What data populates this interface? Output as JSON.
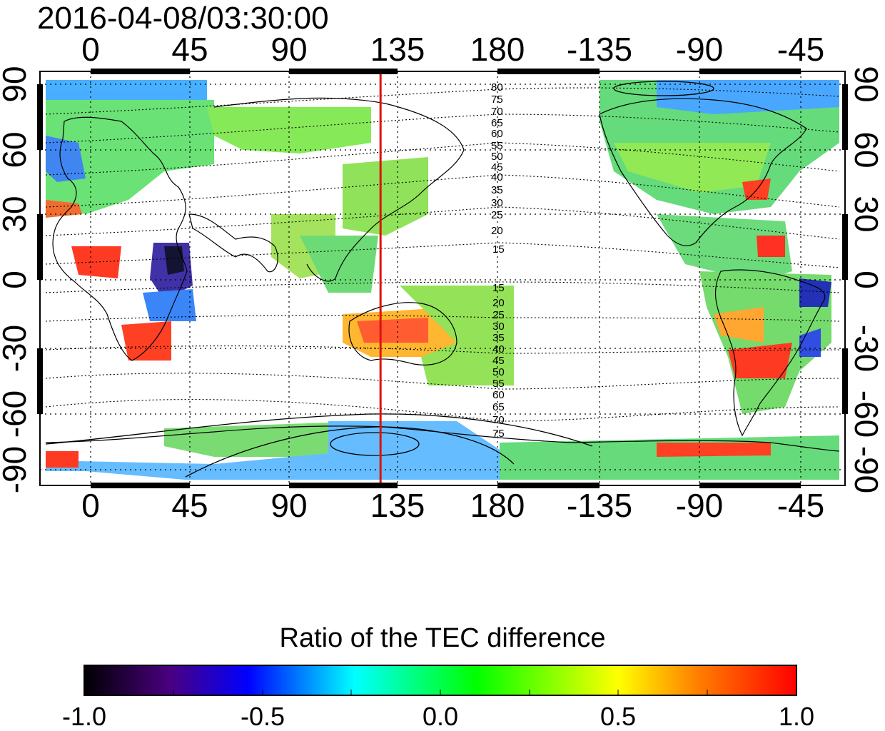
{
  "title": "2016-04-08/03:30:00",
  "map": {
    "lon_ticks": [
      "0",
      "45",
      "90",
      "135",
      "180",
      "-135",
      "-90",
      "-45"
    ],
    "lat_ticks": [
      "90",
      "60",
      "30",
      "0",
      "-30",
      "-60",
      "-90"
    ],
    "marker_longitude": 128,
    "marker_color": "#e0100c",
    "contour_labels_north": [
      "80",
      "75",
      "70",
      "65",
      "60",
      "55",
      "50",
      "45",
      "40",
      "35",
      "30",
      "25",
      "20",
      "15"
    ],
    "contour_labels_south": [
      "15",
      "20",
      "25",
      "30",
      "35",
      "40",
      "45",
      "50",
      "55",
      "60",
      "65",
      "70",
      "75"
    ]
  },
  "colorbar": {
    "title": "Ratio of the TEC difference",
    "ticks": [
      "-1.0",
      "-0.5",
      "0.0",
      "0.5",
      "1.0"
    ],
    "range": [
      -1.0,
      1.0
    ],
    "colors": [
      "#000000",
      "#4a0080",
      "#0000ff",
      "#00ffff",
      "#00ff00",
      "#ffff00",
      "#ff8000",
      "#ff0000"
    ]
  }
}
